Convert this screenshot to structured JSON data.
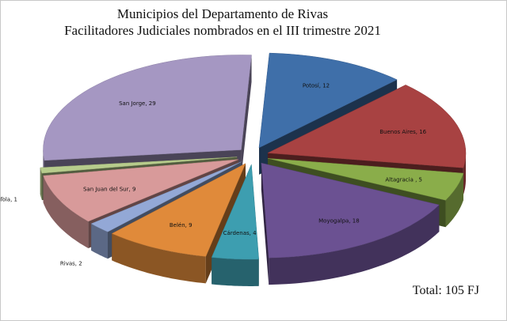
{
  "chart_data": {
    "type": "pie",
    "style": "3d-exploded",
    "title": [
      "Municipios del Departamento de  Rivas",
      "Facilitadores Judiciales nombrados en el III trimestre 2021"
    ],
    "slices": [
      {
        "label": "Potosí",
        "value": 12,
        "color": "#3f6fa9"
      },
      {
        "label": "Buenos Aires",
        "value": 16,
        "color": "#a84242"
      },
      {
        "label": "Altagracia",
        "value": 5,
        "color": "#8aad4a"
      },
      {
        "label": "Moyogalpa",
        "value": 18,
        "color": "#6b5192"
      },
      {
        "label": "Cárdenas",
        "value": 4,
        "color": "#3d9eb0"
      },
      {
        "label": "Belén",
        "value": 9,
        "color": "#e08a3a"
      },
      {
        "label": "Rivas",
        "value": 2,
        "color": "#93a8d6"
      },
      {
        "label": "San Juan del Sur",
        "value": 9,
        "color": "#d89a9a"
      },
      {
        "label": "Tola",
        "value": 1,
        "color": "#b7cc8c"
      },
      {
        "label": "San Jorge",
        "value": 29,
        "color": "#a597c2"
      }
    ],
    "data_labels": [
      "Potosí, 12",
      "Buenos Aires, 16",
      "Altagracia , 5",
      "Moyogalpa, 18",
      "Cárdenas, 4",
      "Belén, 9",
      "Rivas, 2",
      "San Juan del Sur, 9",
      "Tola, 1",
      "San Jorge, 29"
    ],
    "legend": "none",
    "annotation": "Total: 105 FJ"
  }
}
